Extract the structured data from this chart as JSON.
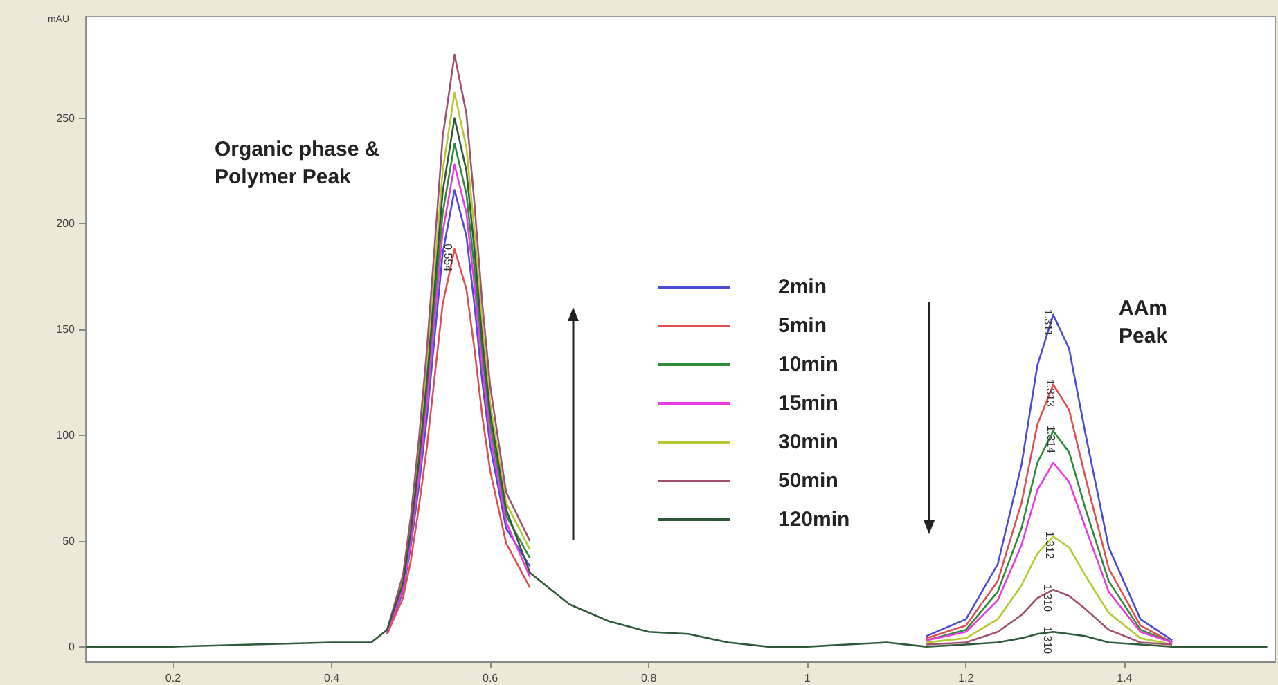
{
  "chart_data": {
    "type": "line",
    "ylabel": "mAU",
    "x": [
      0.09,
      0.2,
      0.3,
      0.4,
      0.45,
      0.47,
      0.49,
      0.5,
      0.51,
      0.52,
      0.53,
      0.54,
      0.555,
      0.57,
      0.58,
      0.59,
      0.6,
      0.62,
      0.65,
      0.7,
      0.75,
      0.8,
      0.85,
      0.9,
      0.95,
      1.0,
      1.05,
      1.1,
      1.15,
      1.2,
      1.24,
      1.27,
      1.29,
      1.31,
      1.33,
      1.35,
      1.38,
      1.42,
      1.46,
      1.5,
      1.58
    ],
    "series": [
      {
        "name": "2min",
        "color": "#4b4bd6",
        "values": [
          null,
          null,
          null,
          null,
          null,
          6,
          26,
          48,
          76,
          108,
          147,
          186,
          216,
          194,
          162,
          125,
          95,
          56,
          38,
          null,
          null,
          null,
          null,
          null,
          null,
          null,
          null,
          null,
          5,
          13,
          39,
          86,
          133,
          157,
          141,
          102,
          47,
          13,
          3,
          null,
          null
        ]
      },
      {
        "name": "5min",
        "color": "#e05050",
        "values": [
          null,
          null,
          null,
          null,
          null,
          6,
          23,
          41,
          66,
          94,
          128,
          162,
          188,
          169,
          141,
          109,
          83,
          49,
          28,
          null,
          null,
          null,
          null,
          null,
          null,
          null,
          null,
          null,
          4,
          10,
          31,
          68,
          105,
          124,
          112,
          81,
          37,
          10,
          2,
          null,
          null
        ]
      },
      {
        "name": "10min",
        "color": "#2e8b3a",
        "values": [
          null,
          null,
          null,
          null,
          null,
          7,
          29,
          52,
          83,
          119,
          162,
          205,
          238,
          214,
          179,
          138,
          105,
          62,
          42,
          null,
          null,
          null,
          null,
          null,
          null,
          null,
          null,
          null,
          3,
          8,
          26,
          56,
          87,
          102,
          92,
          66,
          31,
          8,
          2,
          null,
          null
        ]
      },
      {
        "name": "15min",
        "color": "#e83ce0",
        "values": [
          null,
          null,
          null,
          null,
          null,
          7,
          27,
          50,
          80,
          114,
          155,
          196,
          228,
          205,
          171,
          132,
          100,
          59,
          33,
          null,
          null,
          null,
          null,
          null,
          null,
          null,
          null,
          null,
          3,
          7,
          22,
          48,
          74,
          87,
          78,
          57,
          26,
          7,
          2,
          null,
          null
        ]
      },
      {
        "name": "30min",
        "color": "#b8c832",
        "values": [
          null,
          null,
          null,
          null,
          null,
          8,
          31,
          58,
          92,
          131,
          178,
          225,
          262,
          236,
          197,
          152,
          115,
          68,
          46,
          null,
          null,
          null,
          null,
          null,
          null,
          null,
          null,
          null,
          2,
          4,
          13,
          29,
          44,
          52,
          47,
          34,
          16,
          4,
          1,
          null,
          null
        ]
      },
      {
        "name": "50min",
        "color": "#a05070",
        "values": [
          null,
          null,
          null,
          null,
          null,
          8,
          34,
          62,
          98,
          140,
          190,
          241,
          280,
          252,
          210,
          162,
          123,
          73,
          50,
          null,
          null,
          null,
          null,
          null,
          null,
          null,
          null,
          null,
          1,
          2,
          7,
          15,
          23,
          27,
          24,
          18,
          8,
          2,
          1,
          null,
          null
        ]
      },
      {
        "name": "120min",
        "color": "#2f5a3a",
        "values": [
          0,
          0,
          1,
          2,
          2,
          8,
          30,
          55,
          88,
          125,
          170,
          215,
          250,
          225,
          188,
          145,
          110,
          65,
          35,
          20,
          12,
          7,
          6,
          2,
          0,
          0,
          1,
          2,
          0,
          1,
          2,
          4,
          6,
          7,
          6,
          5,
          2,
          1,
          0,
          0,
          0
        ]
      }
    ],
    "xlim": [
      0.09,
      1.59
    ],
    "xticks": [
      0.2,
      0.4,
      0.6,
      0.8,
      1,
      1.2,
      1.4
    ],
    "ylim": [
      -7,
      298
    ],
    "yticks": [
      0,
      50,
      100,
      150,
      200,
      250
    ],
    "grid": false,
    "legend": "center",
    "marker": "none",
    "line_style": "solid",
    "annotations": [
      "Organic phase &\nPolymer Peak",
      "AAm\nPeak",
      {
        "text": "1.311",
        "x": 1.311,
        "y": 157
      },
      {
        "text": "1.313",
        "x": 1.313,
        "y": 124
      },
      {
        "text": "1.314",
        "x": 1.314,
        "y": 102
      },
      {
        "text": "1.312",
        "x": 1.312,
        "y": 52
      },
      {
        "text": "1.310",
        "x": 1.31,
        "y": 27
      },
      {
        "text": "1.310",
        "x": 1.31,
        "y": 7
      },
      {
        "text": "0.554",
        "x": 0.554,
        "y": 188
      }
    ]
  }
}
